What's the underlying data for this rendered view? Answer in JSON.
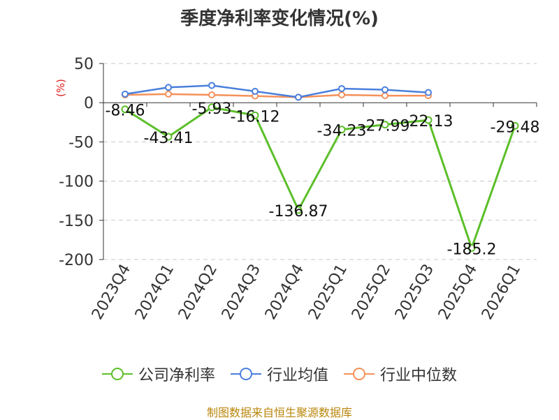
{
  "chart_data": {
    "type": "line",
    "title": "季度净利率变化情况(%)",
    "ylabel": "(%)",
    "categories": [
      "2023Q4",
      "2024Q1",
      "2024Q2",
      "2024Q3",
      "2024Q4",
      "2025Q1",
      "2025Q2",
      "2025Q3",
      "2025Q4",
      "2026Q1"
    ],
    "ylim": [
      -200,
      50
    ],
    "yticks": [
      50,
      0,
      -50,
      -100,
      -150,
      -200
    ],
    "grid": true,
    "legend_position": "bottom",
    "series": [
      {
        "name": "公司净利率",
        "color": "#5cbf2a",
        "values": [
          -8.46,
          -43.41,
          -5.93,
          -16.12,
          -136.87,
          -34.23,
          -27.99,
          -22.13,
          -185.2,
          -29.48
        ],
        "labels": [
          "-8.46",
          "-43.41",
          "-5.93",
          "-16.12",
          "-136.87",
          "-34.23",
          "-27.99",
          "-22.13",
          "-185.2",
          "-29.48"
        ]
      },
      {
        "name": "行业均值",
        "color": "#4a7fdc",
        "values": [
          11,
          19.5,
          22,
          14.5,
          7,
          18,
          16.5,
          13,
          null,
          null
        ]
      },
      {
        "name": "行业中位数",
        "color": "#f4915a",
        "values": [
          10,
          11,
          10,
          8.5,
          7,
          10,
          9,
          9,
          null,
          null
        ]
      }
    ]
  },
  "source": "制图数据来自恒生聚源数据库"
}
